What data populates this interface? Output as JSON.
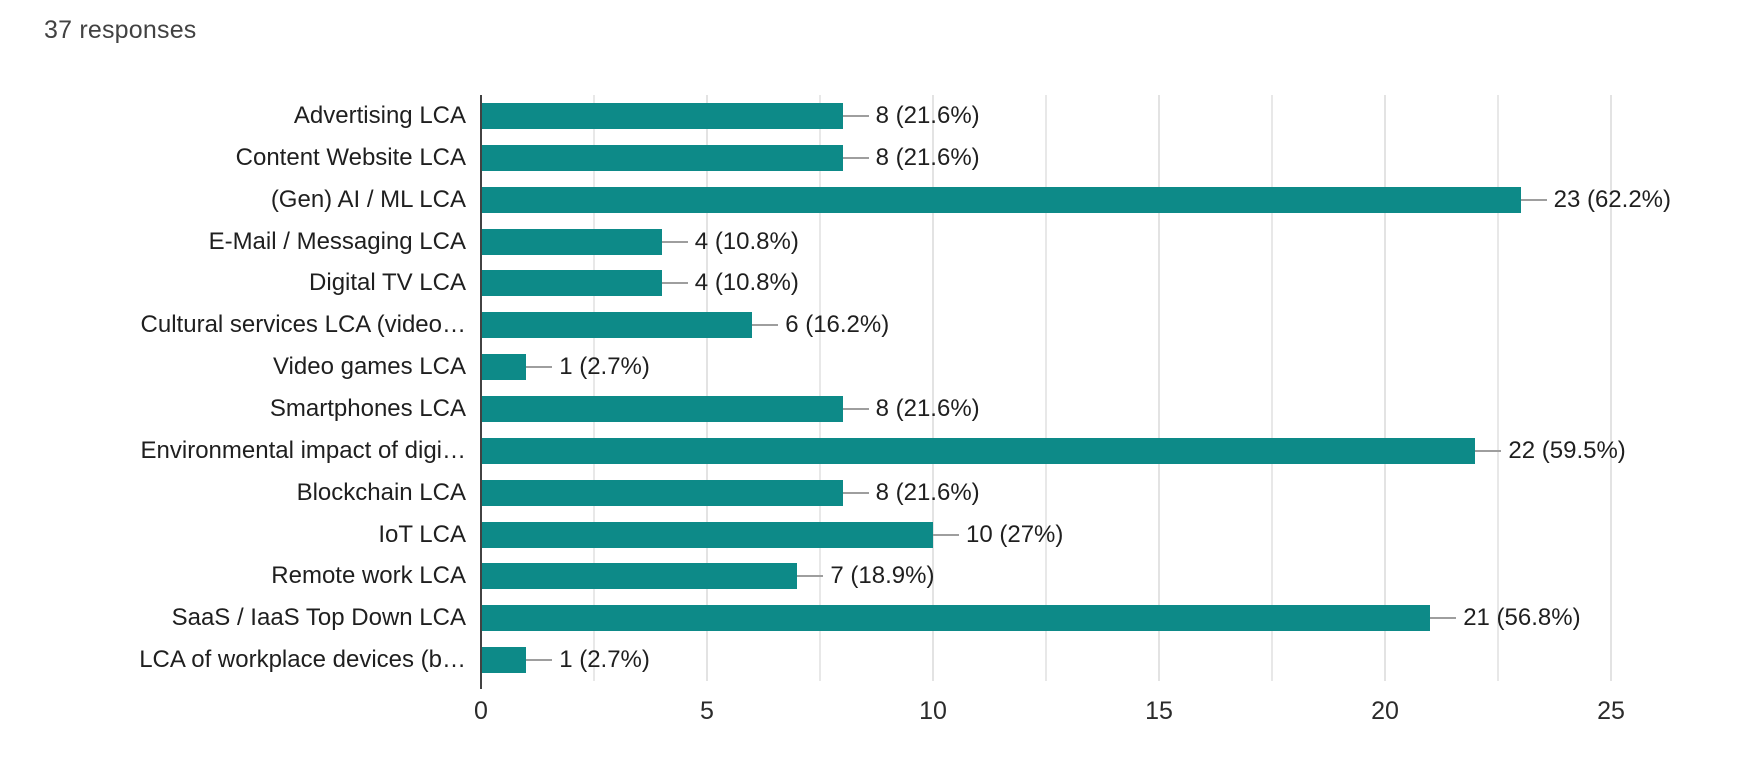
{
  "header": {
    "responses_label": "37 responses"
  },
  "chart_data": {
    "type": "bar",
    "orientation": "horizontal",
    "title": "",
    "xlabel": "",
    "ylabel": "",
    "legend": "none",
    "grid": "vertical, every 2.5 units",
    "xlim": [
      0,
      25
    ],
    "x_ticks": [
      0,
      5,
      10,
      15,
      20,
      25
    ],
    "gridline_interval": 2.5,
    "bar_color": "#0d8a88",
    "connector_color": "#9e9e9e",
    "axis_color": "#424242",
    "categories": [
      "Advertising LCA",
      "Content Website LCA",
      "(Gen) AI / ML LCA",
      "E-Mail / Messaging LCA",
      "Digital TV LCA",
      "Cultural services LCA (video…",
      "Video games LCA",
      "Smartphones LCA",
      "Environmental impact of digi…",
      "Blockchain LCA",
      "IoT LCA",
      "Remote work LCA",
      "SaaS / IaaS Top Down LCA",
      "LCA of workplace devices (b…"
    ],
    "values": [
      8,
      8,
      23,
      4,
      4,
      6,
      1,
      8,
      22,
      8,
      10,
      7,
      21,
      1
    ],
    "value_labels": [
      "8 (21.6%)",
      "8 (21.6%)",
      "23 (62.2%)",
      "4 (10.8%)",
      "4 (10.8%)",
      "6 (16.2%)",
      "1 (2.7%)",
      "8 (21.6%)",
      "22 (59.5%)",
      "8 (21.6%)",
      "10 (27%)",
      "7 (18.9%)",
      "21 (56.8%)",
      "1 (2.7%)"
    ]
  }
}
